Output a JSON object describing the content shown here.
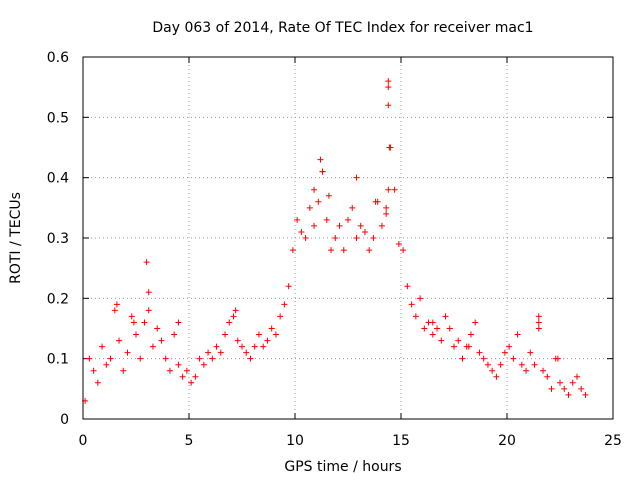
{
  "chart_data": {
    "type": "scatter",
    "title": "Day 063 of 2014, Rate Of TEC Index for receiver mac1",
    "xlabel": "GPS time / hours",
    "ylabel": "ROTI / TECUs",
    "xlim": [
      0,
      25
    ],
    "ylim": [
      0,
      0.6
    ],
    "xticks": [
      "0",
      "5",
      "10",
      "15",
      "20",
      "25"
    ],
    "yticks": [
      "0",
      "0.1",
      "0.2",
      "0.3",
      "0.4",
      "0.5",
      "0.6"
    ],
    "grid": true,
    "marker": "+",
    "color": "#ff0000",
    "series": [
      {
        "x": [
          0.1,
          0.3,
          0.5,
          0.7,
          0.9,
          1.1,
          1.3,
          1.5,
          1.7,
          1.9,
          2.1,
          2.3,
          2.5,
          2.7,
          2.9,
          3.1,
          3.3,
          3.5,
          3.7,
          3.9,
          4.1,
          4.3,
          4.5,
          4.7,
          4.9,
          5.1,
          5.3,
          5.5,
          5.7,
          5.9,
          6.1,
          6.3,
          6.5,
          6.7,
          6.9,
          7.1,
          7.3,
          7.5,
          7.7,
          7.9,
          8.1,
          8.3,
          8.5,
          8.7,
          8.9,
          9.1,
          9.3,
          9.5,
          9.7,
          9.9,
          10.1,
          10.3,
          10.5,
          10.7,
          10.9,
          11.1,
          11.3,
          11.5,
          11.7,
          11.9,
          12.1,
          12.3,
          12.5,
          12.7,
          12.9,
          13.1,
          13.3,
          13.5,
          13.7,
          13.9,
          14.1,
          14.3,
          14.5,
          14.7,
          14.9,
          15.1,
          15.3,
          15.5,
          15.7,
          15.9,
          16.1,
          16.3,
          16.5,
          16.7,
          16.9,
          17.1,
          17.3,
          17.5,
          17.7,
          17.9,
          18.1,
          18.3,
          18.5,
          18.7,
          18.9,
          19.1,
          19.3,
          19.5,
          19.7,
          19.9,
          20.1,
          20.3,
          20.5,
          20.7,
          20.9,
          21.1,
          21.3,
          21.5,
          21.7,
          21.9,
          22.1,
          22.3,
          22.5,
          22.7,
          22.9,
          23.1,
          23.3,
          23.5,
          23.7,
          3.0,
          3.1,
          11.2,
          11.3,
          12.9,
          14.4,
          14.4,
          14.4,
          14.45,
          14.4,
          10.9,
          11.6,
          13.8,
          14.3,
          1.6,
          21.5,
          21.5,
          22.4,
          16.5,
          18.2,
          7.2,
          4.5,
          2.4
        ],
        "y": [
          0.03,
          0.1,
          0.08,
          0.06,
          0.12,
          0.09,
          0.1,
          0.18,
          0.13,
          0.08,
          0.11,
          0.17,
          0.14,
          0.1,
          0.16,
          0.18,
          0.12,
          0.15,
          0.13,
          0.1,
          0.08,
          0.14,
          0.09,
          0.07,
          0.08,
          0.06,
          0.07,
          0.1,
          0.09,
          0.11,
          0.1,
          0.12,
          0.11,
          0.14,
          0.16,
          0.17,
          0.13,
          0.12,
          0.11,
          0.1,
          0.12,
          0.14,
          0.12,
          0.13,
          0.15,
          0.14,
          0.17,
          0.19,
          0.22,
          0.28,
          0.33,
          0.31,
          0.3,
          0.35,
          0.32,
          0.36,
          0.41,
          0.33,
          0.28,
          0.3,
          0.32,
          0.28,
          0.33,
          0.35,
          0.3,
          0.32,
          0.31,
          0.28,
          0.3,
          0.36,
          0.32,
          0.34,
          0.45,
          0.38,
          0.29,
          0.28,
          0.22,
          0.19,
          0.17,
          0.2,
          0.15,
          0.16,
          0.14,
          0.15,
          0.13,
          0.17,
          0.15,
          0.12,
          0.13,
          0.1,
          0.12,
          0.14,
          0.16,
          0.11,
          0.1,
          0.09,
          0.08,
          0.07,
          0.09,
          0.11,
          0.12,
          0.1,
          0.14,
          0.09,
          0.08,
          0.11,
          0.09,
          0.15,
          0.08,
          0.07,
          0.05,
          0.1,
          0.06,
          0.05,
          0.04,
          0.06,
          0.07,
          0.05,
          0.04,
          0.26,
          0.21,
          0.43,
          0.41,
          0.4,
          0.56,
          0.55,
          0.52,
          0.45,
          0.38,
          0.38,
          0.37,
          0.36,
          0.35,
          0.19,
          0.17,
          0.16,
          0.1,
          0.16,
          0.12,
          0.18,
          0.16,
          0.16
        ]
      }
    ]
  }
}
